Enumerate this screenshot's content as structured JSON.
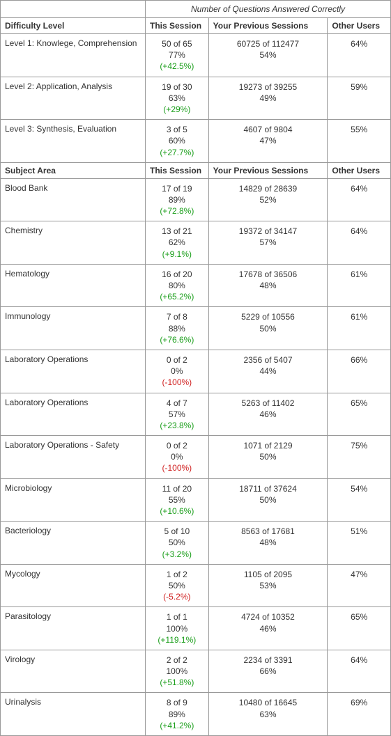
{
  "spanningHeader": "Number of Questions Answered Correctly",
  "columns": {
    "thisSession": "This Session",
    "previousSessions": "Your Previous Sessions",
    "otherUsers": "Other Users"
  },
  "sections": [
    {
      "title": "Difficulty Level",
      "rows": [
        {
          "label": "Level 1: Knowlege, Comprehension",
          "this": {
            "score": "50 of 65",
            "pct": "77%",
            "delta": "(+42.5%)",
            "deltaSign": "pos"
          },
          "prev": {
            "score": "60725 of 112477",
            "pct": "54%"
          },
          "other": "64%"
        },
        {
          "label": "Level 2: Application, Analysis",
          "this": {
            "score": "19 of 30",
            "pct": "63%",
            "delta": "(+29%)",
            "deltaSign": "pos"
          },
          "prev": {
            "score": "19273 of 39255",
            "pct": "49%"
          },
          "other": "59%"
        },
        {
          "label": "Level 3: Synthesis, Evaluation",
          "this": {
            "score": "3 of 5",
            "pct": "60%",
            "delta": "(+27.7%)",
            "deltaSign": "pos"
          },
          "prev": {
            "score": "4607 of 9804",
            "pct": "47%"
          },
          "other": "55%"
        }
      ]
    },
    {
      "title": "Subject Area",
      "rows": [
        {
          "label": "Blood Bank",
          "this": {
            "score": "17 of 19",
            "pct": "89%",
            "delta": "(+72.8%)",
            "deltaSign": "pos"
          },
          "prev": {
            "score": "14829 of 28639",
            "pct": "52%"
          },
          "other": "64%"
        },
        {
          "label": "Chemistry",
          "this": {
            "score": "13 of 21",
            "pct": "62%",
            "delta": "(+9.1%)",
            "deltaSign": "pos"
          },
          "prev": {
            "score": "19372 of 34147",
            "pct": "57%"
          },
          "other": "64%"
        },
        {
          "label": "Hematology",
          "this": {
            "score": "16 of 20",
            "pct": "80%",
            "delta": "(+65.2%)",
            "deltaSign": "pos"
          },
          "prev": {
            "score": "17678 of 36506",
            "pct": "48%"
          },
          "other": "61%"
        },
        {
          "label": "Immunology",
          "this": {
            "score": "7 of 8",
            "pct": "88%",
            "delta": "(+76.6%)",
            "deltaSign": "pos"
          },
          "prev": {
            "score": "5229 of 10556",
            "pct": "50%"
          },
          "other": "61%"
        },
        {
          "label": "Laboratory Operations",
          "this": {
            "score": "0 of 2",
            "pct": "0%",
            "delta": "(-100%)",
            "deltaSign": "neg"
          },
          "prev": {
            "score": "2356 of 5407",
            "pct": "44%"
          },
          "other": "66%"
        },
        {
          "label": "Laboratory Operations",
          "this": {
            "score": "4 of 7",
            "pct": "57%",
            "delta": "(+23.8%)",
            "deltaSign": "pos"
          },
          "prev": {
            "score": "5263 of 11402",
            "pct": "46%"
          },
          "other": "65%"
        },
        {
          "label": "Laboratory Operations - Safety",
          "this": {
            "score": "0 of 2",
            "pct": "0%",
            "delta": "(-100%)",
            "deltaSign": "neg"
          },
          "prev": {
            "score": "1071 of 2129",
            "pct": "50%"
          },
          "other": "75%"
        },
        {
          "label": "Microbiology",
          "this": {
            "score": "11 of 20",
            "pct": "55%",
            "delta": "(+10.6%)",
            "deltaSign": "pos"
          },
          "prev": {
            "score": "18711 of 37624",
            "pct": "50%"
          },
          "other": "54%"
        },
        {
          "label": "Bacteriology",
          "this": {
            "score": "5 of 10",
            "pct": "50%",
            "delta": "(+3.2%)",
            "deltaSign": "pos"
          },
          "prev": {
            "score": "8563 of 17681",
            "pct": "48%"
          },
          "other": "51%"
        },
        {
          "label": "Mycology",
          "this": {
            "score": "1 of 2",
            "pct": "50%",
            "delta": "(-5.2%)",
            "deltaSign": "neg"
          },
          "prev": {
            "score": "1105 of 2095",
            "pct": "53%"
          },
          "other": "47%"
        },
        {
          "label": "Parasitology",
          "this": {
            "score": "1 of 1",
            "pct": "100%",
            "delta": "(+119.1%)",
            "deltaSign": "pos"
          },
          "prev": {
            "score": "4724 of 10352",
            "pct": "46%"
          },
          "other": "65%"
        },
        {
          "label": "Virology",
          "this": {
            "score": "2 of 2",
            "pct": "100%",
            "delta": "(+51.8%)",
            "deltaSign": "pos"
          },
          "prev": {
            "score": "2234 of 3391",
            "pct": "66%"
          },
          "other": "64%"
        },
        {
          "label": "Urinalysis",
          "this": {
            "score": "8 of 9",
            "pct": "89%",
            "delta": "(+41.2%)",
            "deltaSign": "pos"
          },
          "prev": {
            "score": "10480 of 16645",
            "pct": "63%"
          },
          "other": "69%"
        }
      ]
    }
  ]
}
